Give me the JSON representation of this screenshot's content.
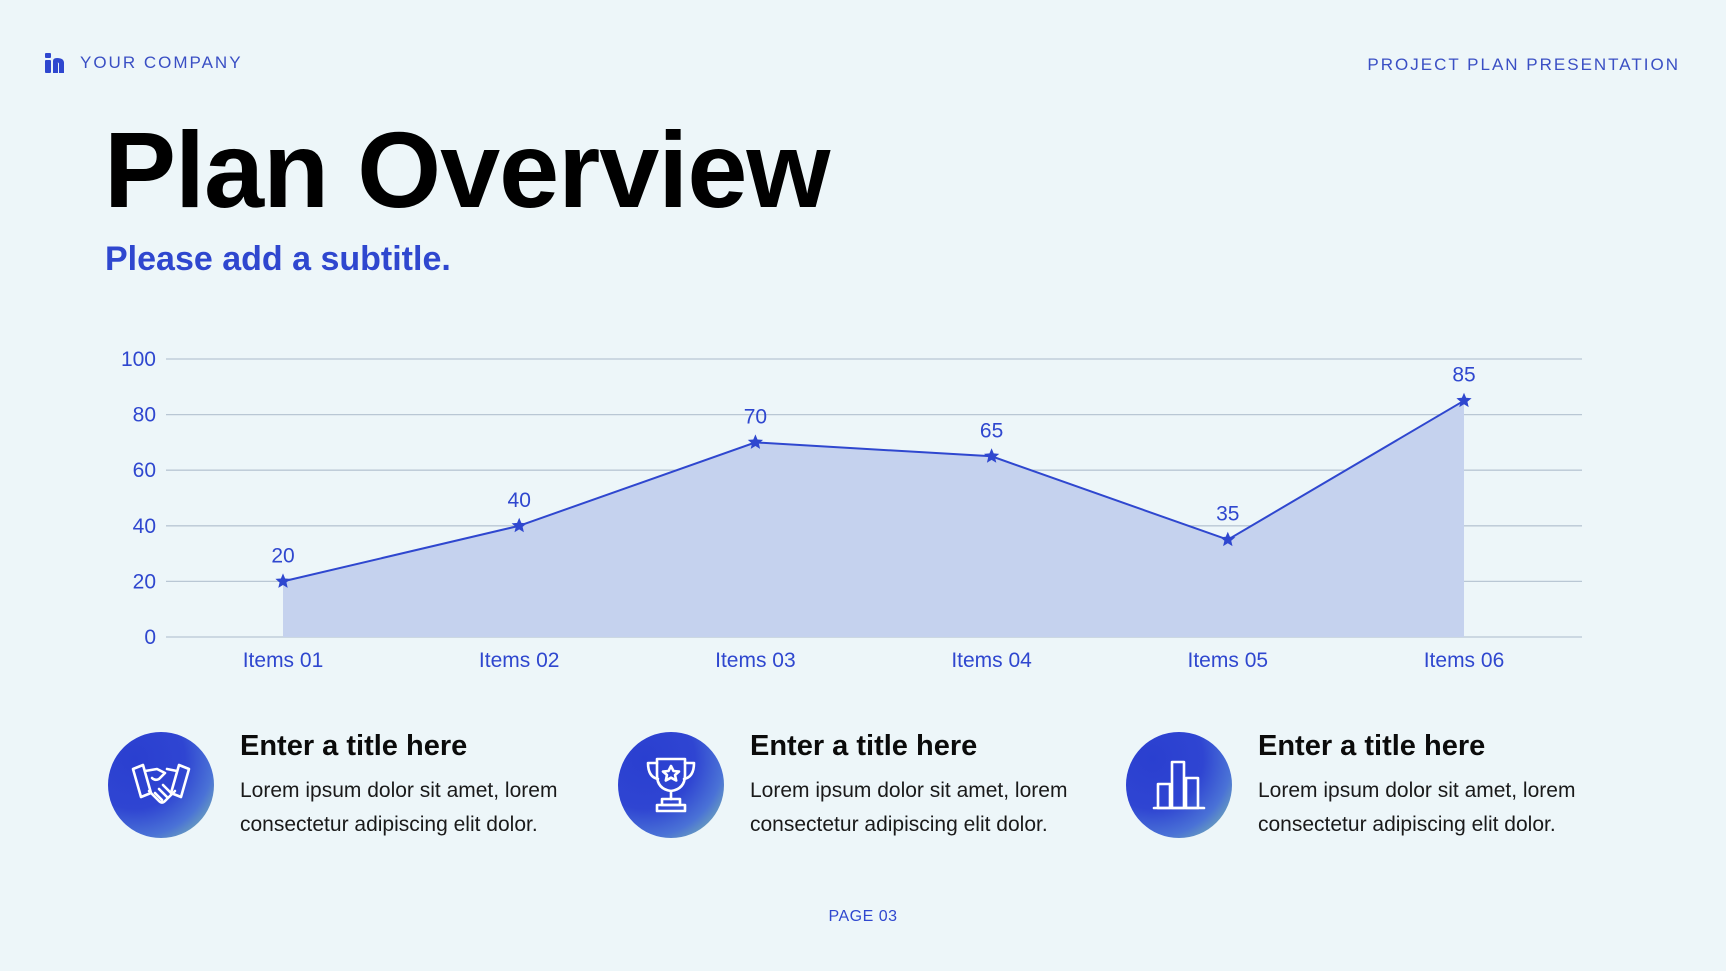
{
  "header": {
    "company": "YOUR COMPANY",
    "presentation": "PROJECT PLAN PRESENTATION"
  },
  "title": "Plan Overview",
  "subtitle": "Please add a subtitle.",
  "colors": {
    "accent": "#2f47cf",
    "area_fill": "#c5d2ee",
    "grid": "#b9c7d4",
    "background": "#edf6f9"
  },
  "chart_data": {
    "type": "area",
    "categories": [
      "Items 01",
      "Items 02",
      "Items 03",
      "Items 04",
      "Items 05",
      "Items 06"
    ],
    "values": [
      20,
      40,
      70,
      65,
      35,
      85
    ],
    "ylim": [
      0,
      100
    ],
    "yticks": [
      0,
      20,
      40,
      60,
      80,
      100
    ],
    "grid": true,
    "marker": "star",
    "data_labels": true
  },
  "cards": [
    {
      "icon": "handshake-icon",
      "title": "Enter a title here",
      "text": "Lorem ipsum dolor sit amet, lorem consectetur adipiscing elit dolor."
    },
    {
      "icon": "trophy-icon",
      "title": "Enter a title here",
      "text": "Lorem ipsum dolor sit amet, lorem consectetur adipiscing elit dolor."
    },
    {
      "icon": "bar-chart-icon",
      "title": "Enter a title here",
      "text": "Lorem ipsum dolor sit amet, lorem consectetur adipiscing elit dolor."
    }
  ],
  "footer": "PAGE 03"
}
